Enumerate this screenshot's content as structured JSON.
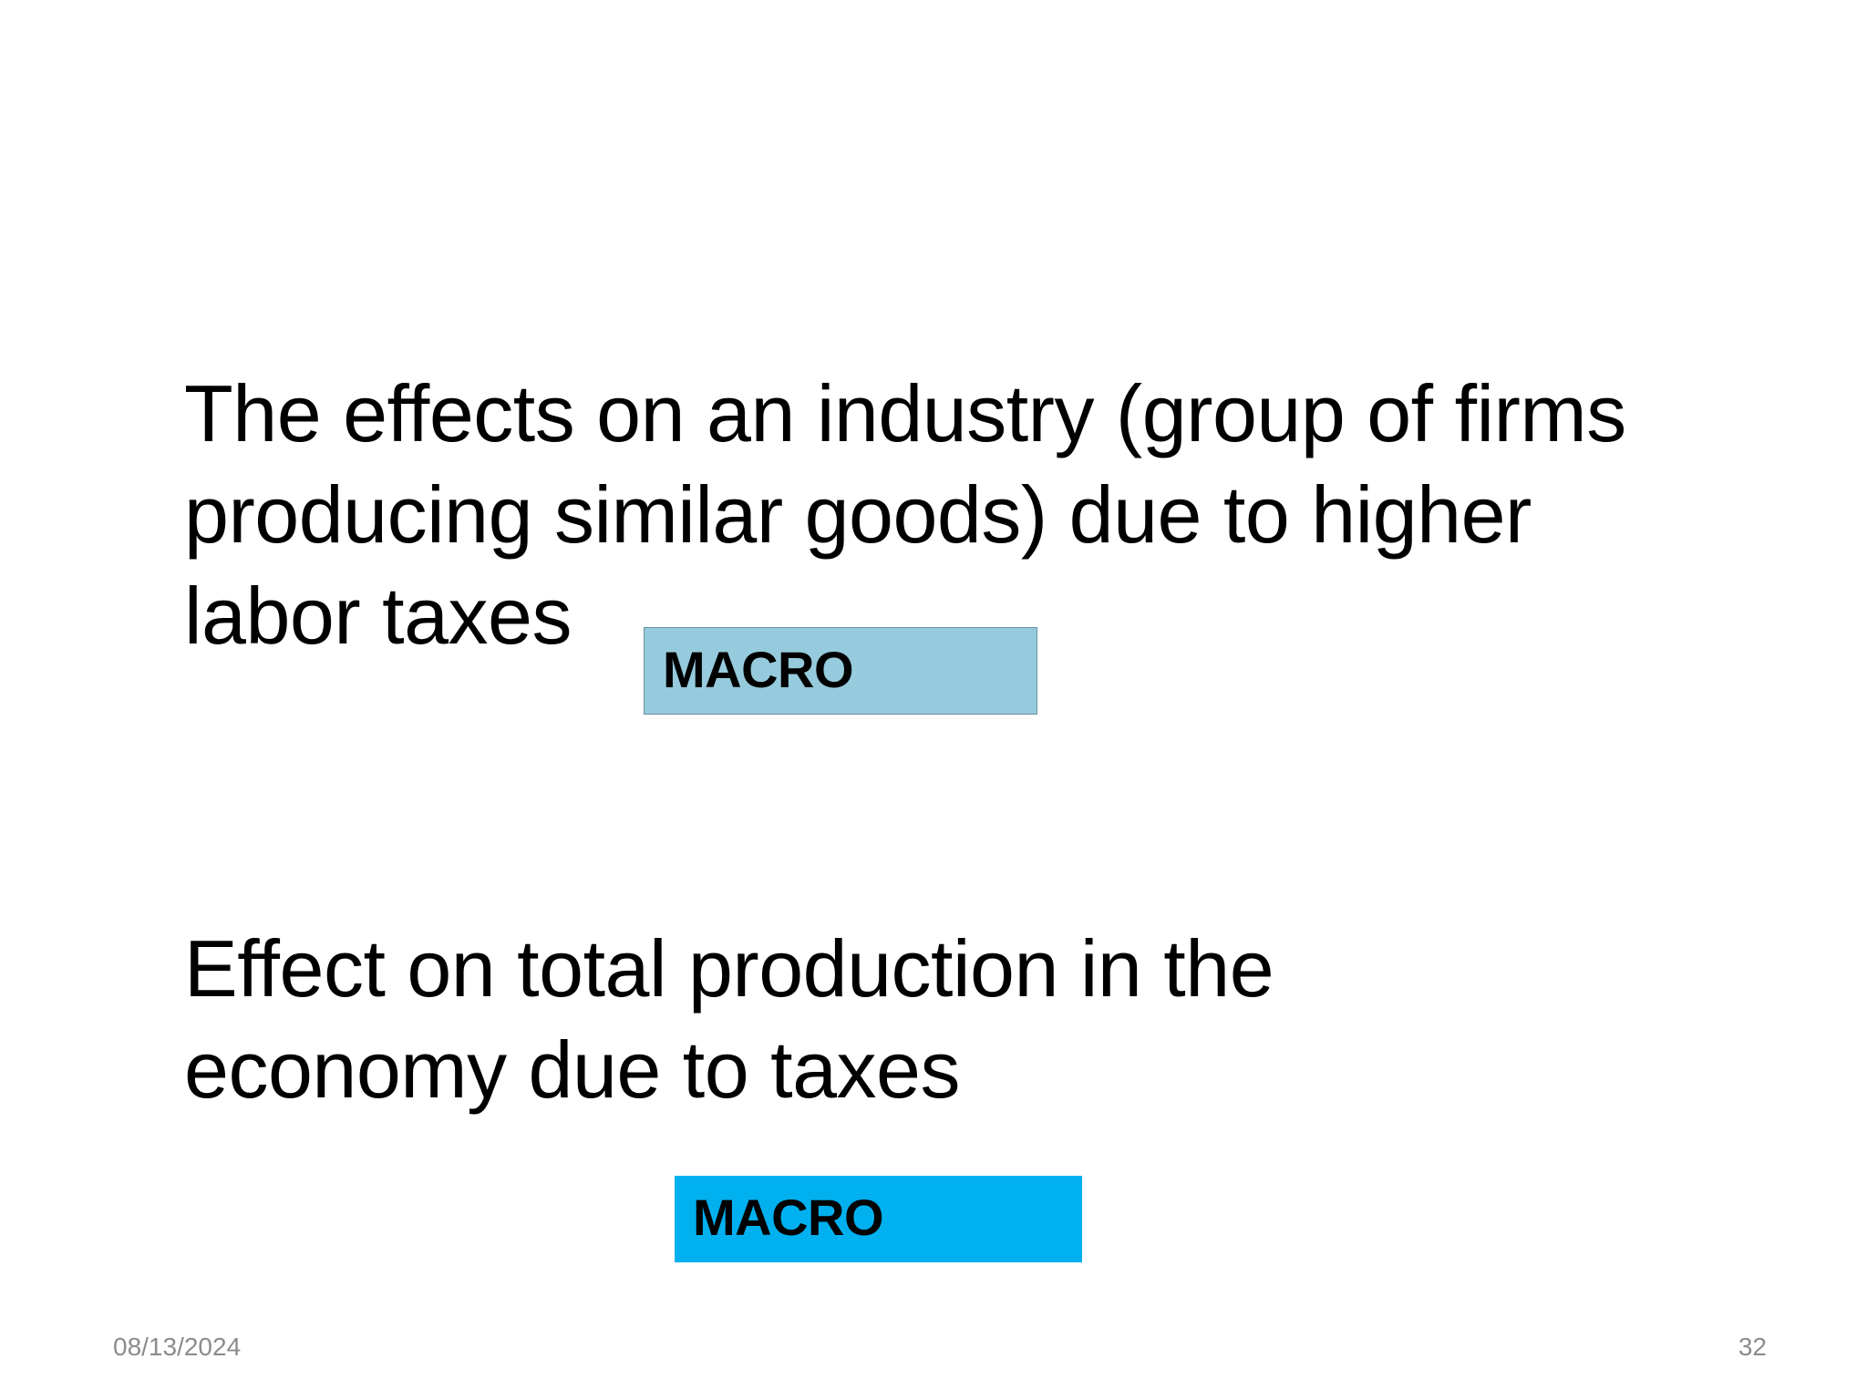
{
  "slide": {
    "statements": [
      {
        "lines": [
          "The effects on an industry (group of firms",
          "producing similar goods) due to higher",
          "labor taxes"
        ],
        "tag": {
          "label": "MACRO",
          "color": "#96cbdd"
        }
      },
      {
        "lines": [
          "Effect on total production in the",
          "economy due to taxes"
        ],
        "tag": {
          "label": "MACRO",
          "color": "#00b0ef"
        }
      }
    ]
  },
  "footer": {
    "date": "08/13/2024",
    "page_number": "32"
  }
}
